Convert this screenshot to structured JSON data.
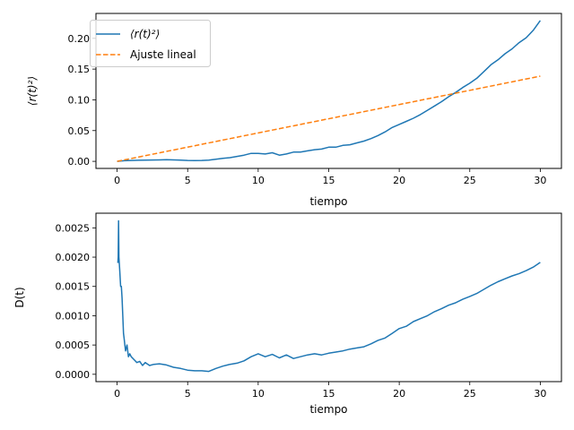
{
  "chart_data": [
    {
      "type": "line",
      "xlabel": "tiempo",
      "ylabel": "⟨r(t)²⟩",
      "xlim": [
        -1.5,
        31.5
      ],
      "ylim": [
        -0.0115,
        0.2405
      ],
      "xticks": [
        0,
        5,
        10,
        15,
        20,
        25,
        30
      ],
      "yticks": [
        0.0,
        0.05,
        0.1,
        0.15,
        0.2
      ],
      "ytick_labels": [
        "0.00",
        "0.05",
        "0.10",
        "0.15",
        "0.20"
      ],
      "legend_placement": "top-left",
      "grid": false,
      "series": [
        {
          "name": "⟨r(t)²⟩",
          "color": "#1f77b4",
          "style": "solid",
          "x": [
            0,
            0.5,
            1,
            1.5,
            2,
            2.5,
            3,
            3.5,
            4,
            4.5,
            5,
            5.5,
            6,
            6.5,
            7,
            7.5,
            8,
            8.5,
            9,
            9.5,
            10,
            10.5,
            11,
            11.5,
            12,
            12.5,
            13,
            13.5,
            14,
            14.5,
            15,
            15.5,
            16,
            16.5,
            17,
            17.5,
            18,
            18.5,
            19,
            19.5,
            20,
            20.5,
            21,
            21.5,
            22,
            22.5,
            23,
            23.5,
            24,
            24.5,
            25,
            25.5,
            26,
            26.5,
            27,
            27.5,
            28,
            28.5,
            29,
            29.5,
            30
          ],
          "y": [
            0.0,
            0.001,
            0.0015,
            0.0018,
            0.002,
            0.0022,
            0.0024,
            0.0026,
            0.0024,
            0.002,
            0.0015,
            0.0013,
            0.0015,
            0.002,
            0.0035,
            0.005,
            0.006,
            0.008,
            0.01,
            0.013,
            0.013,
            0.012,
            0.014,
            0.01,
            0.012,
            0.015,
            0.015,
            0.017,
            0.019,
            0.02,
            0.023,
            0.023,
            0.026,
            0.027,
            0.03,
            0.033,
            0.037,
            0.042,
            0.048,
            0.055,
            0.06,
            0.065,
            0.07,
            0.076,
            0.083,
            0.09,
            0.097,
            0.105,
            0.112,
            0.12,
            0.127,
            0.135,
            0.146,
            0.157,
            0.165,
            0.175,
            0.183,
            0.193,
            0.201,
            0.213,
            0.229
          ]
        },
        {
          "name": "Ajuste lineal",
          "color": "#ff7f0e",
          "style": "dashed",
          "x": [
            0,
            30
          ],
          "y": [
            0.0,
            0.1385
          ]
        }
      ]
    },
    {
      "type": "line",
      "xlabel": "tiempo",
      "ylabel": "D(t)",
      "xlim": [
        -1.5,
        31.5
      ],
      "ylim": [
        -0.000125,
        0.00275
      ],
      "xticks": [
        0,
        5,
        10,
        15,
        20,
        25,
        30
      ],
      "yticks": [
        0.0,
        0.0005,
        0.001,
        0.0015,
        0.002,
        0.0025
      ],
      "ytick_labels": [
        "0.0000",
        "0.0005",
        "0.0010",
        "0.0015",
        "0.0020",
        "0.0025"
      ],
      "grid": false,
      "series": [
        {
          "color": "#1f77b4",
          "style": "solid",
          "x": [
            0.05,
            0.08,
            0.1,
            0.13,
            0.18,
            0.25,
            0.3,
            0.35,
            0.4,
            0.45,
            0.5,
            0.55,
            0.6,
            0.7,
            0.8,
            0.9,
            1.0,
            1.2,
            1.4,
            1.6,
            1.8,
            2.0,
            2.3,
            2.6,
            3.0,
            3.5,
            4.0,
            4.5,
            5.0,
            5.5,
            6.0,
            6.5,
            7.0,
            7.5,
            8.0,
            8.5,
            9.0,
            9.5,
            10.0,
            10.5,
            11.0,
            11.5,
            12.0,
            12.5,
            13.0,
            13.5,
            14.0,
            14.5,
            15.0,
            15.5,
            16.0,
            16.5,
            17.0,
            17.5,
            18.0,
            18.5,
            19.0,
            19.5,
            20.0,
            20.5,
            21.0,
            21.5,
            22.0,
            22.5,
            23.0,
            23.5,
            24.0,
            24.5,
            25.0,
            25.5,
            26.0,
            26.5,
            27.0,
            27.5,
            28.0,
            28.5,
            29.0,
            29.5,
            30.0
          ],
          "y": [
            0.0019,
            0.002,
            0.00262,
            0.002,
            0.0018,
            0.0015,
            0.0015,
            0.0013,
            0.001,
            0.0007,
            0.0006,
            0.0005,
            0.0004,
            0.0005,
            0.0003,
            0.00035,
            0.0003,
            0.00025,
            0.0002,
            0.00022,
            0.00015,
            0.0002,
            0.00015,
            0.00017,
            0.00018,
            0.00016,
            0.00012,
            0.0001,
            7e-05,
            6e-05,
            6e-05,
            5e-05,
            0.0001,
            0.00014,
            0.00017,
            0.00019,
            0.00023,
            0.0003,
            0.00035,
            0.0003,
            0.00034,
            0.00028,
            0.00033,
            0.00027,
            0.0003,
            0.00033,
            0.00035,
            0.00033,
            0.00036,
            0.00038,
            0.0004,
            0.00043,
            0.00045,
            0.00047,
            0.00052,
            0.00058,
            0.00062,
            0.0007,
            0.00078,
            0.00082,
            0.0009,
            0.00095,
            0.001,
            0.00107,
            0.00112,
            0.00118,
            0.00122,
            0.00128,
            0.00133,
            0.00138,
            0.00145,
            0.00152,
            0.00158,
            0.00163,
            0.00168,
            0.00172,
            0.00177,
            0.00183,
            0.00191
          ]
        }
      ]
    }
  ]
}
